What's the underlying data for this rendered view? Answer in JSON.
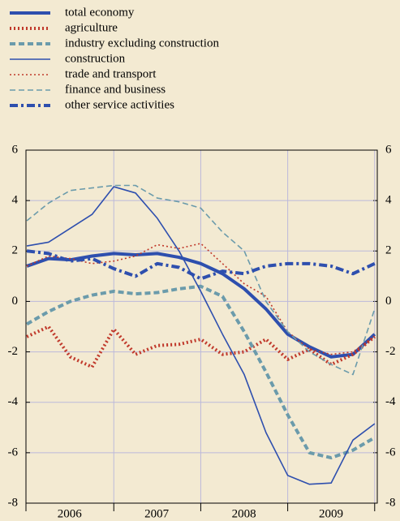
{
  "chart_data": {
    "type": "line",
    "x": [
      2006,
      2006.25,
      2006.5,
      2006.75,
      2007,
      2007.25,
      2007.5,
      2007.75,
      2008,
      2008.25,
      2008.5,
      2008.75,
      2009,
      2009.25,
      2009.5,
      2009.75,
      2010
    ],
    "year_labels": [
      "2006",
      "2007",
      "2008",
      "2009"
    ],
    "series": [
      {
        "name": "total economy",
        "color": "#2e4fae",
        "dash": "solid",
        "weight": "thick",
        "values": [
          1.4,
          1.7,
          1.65,
          1.8,
          1.9,
          1.85,
          1.9,
          1.75,
          1.5,
          1.1,
          0.5,
          -0.3,
          -1.3,
          -1.8,
          -2.2,
          -2.1,
          -1.3
        ]
      },
      {
        "name": "agriculture",
        "color": "#c0392b",
        "dash": "dotted",
        "weight": "thick",
        "values": [
          -1.4,
          -1.0,
          -2.2,
          -2.6,
          -1.1,
          -2.1,
          -1.75,
          -1.7,
          -1.5,
          -2.1,
          -2.0,
          -1.5,
          -2.3,
          -1.9,
          -2.5,
          -2.1,
          -1.4
        ]
      },
      {
        "name": "industry excluding construction",
        "color": "#6b9bab",
        "dash": "dashed",
        "weight": "thick",
        "values": [
          -0.9,
          -0.4,
          0.0,
          0.25,
          0.4,
          0.3,
          0.35,
          0.5,
          0.6,
          0.2,
          -1.2,
          -2.8,
          -4.5,
          -6.0,
          -6.2,
          -5.9,
          -5.4
        ]
      },
      {
        "name": "construction",
        "color": "#2e4fae",
        "dash": "solid",
        "weight": "thin",
        "values": [
          2.2,
          2.35,
          2.9,
          3.45,
          4.55,
          4.3,
          3.3,
          2.0,
          0.4,
          -1.3,
          -2.9,
          -5.2,
          -6.9,
          -7.25,
          -7.2,
          -5.5,
          -4.85
        ]
      },
      {
        "name": "trade and transport",
        "color": "#c0392b",
        "dash": "dotted",
        "weight": "thin",
        "values": [
          1.4,
          1.8,
          1.7,
          1.5,
          1.6,
          1.8,
          2.25,
          2.1,
          2.3,
          1.5,
          0.7,
          0.2,
          -1.2,
          -1.9,
          -2.1,
          -2.0,
          -1.4
        ]
      },
      {
        "name": "finance and business",
        "color": "#6b9bab",
        "dash": "dashed",
        "weight": "thin",
        "values": [
          3.2,
          3.9,
          4.4,
          4.5,
          4.6,
          4.6,
          4.1,
          3.95,
          3.7,
          2.75,
          2.0,
          0.0,
          -1.2,
          -2.0,
          -2.5,
          -2.9,
          -0.3
        ]
      },
      {
        "name": "other service activities",
        "color": "#2e4fae",
        "dash": "dashdot",
        "weight": "thick",
        "values": [
          2.0,
          1.9,
          1.6,
          1.7,
          1.3,
          1.0,
          1.5,
          1.35,
          0.9,
          1.2,
          1.1,
          1.4,
          1.5,
          1.5,
          1.4,
          1.1,
          1.5
        ]
      }
    ],
    "xlim": [
      2005.99,
      2010.03
    ],
    "xticks": [
      2007,
      2008,
      2009,
      2010
    ],
    "ylim": [
      -8,
      6
    ],
    "yticks": [
      -8,
      -6,
      -4,
      -2,
      0,
      2,
      4,
      6
    ],
    "grid": true
  }
}
